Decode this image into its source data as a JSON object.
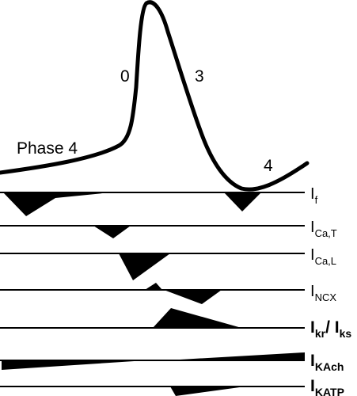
{
  "phase_labels": {
    "phase4_left": "Phase 4",
    "phase0": "0",
    "phase3": "3",
    "phase4_right": "4"
  },
  "currents": [
    {
      "main": "I",
      "sub": "f"
    },
    {
      "main": "I",
      "sub": "Ca,T"
    },
    {
      "main": "I",
      "sub": "Ca,L"
    },
    {
      "main": "I",
      "sub": "NCX"
    },
    {
      "main": "I",
      "sub": "kr",
      "sep": "/ I",
      "sub2": "ks"
    },
    {
      "main": "I",
      "sub": "KAch"
    },
    {
      "main": "I",
      "sub": "KATP"
    }
  ]
}
